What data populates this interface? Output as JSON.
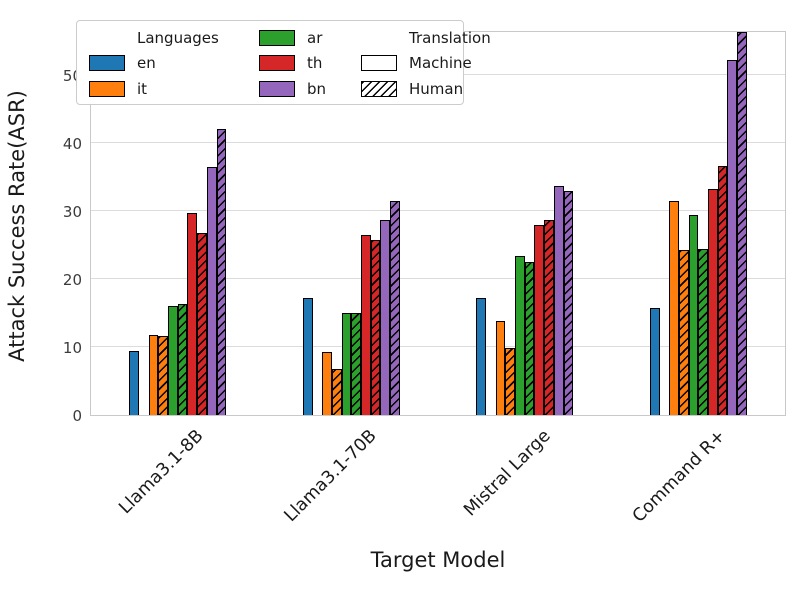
{
  "figure": {
    "background": "#ffffff",
    "text_color": "#1a1a1a",
    "grid_color": "#dcdcdc",
    "spine_color": "#c9c9c9",
    "bar_edge_color": "#000000"
  },
  "legend": {
    "columns": [
      {
        "items": [
          {
            "type": "header",
            "label": "Languages"
          },
          {
            "type": "patch",
            "color": "#1f77b4",
            "hatch": false,
            "label": "en"
          },
          {
            "type": "patch",
            "color": "#ff7f0e",
            "hatch": false,
            "label": "it"
          }
        ]
      },
      {
        "items": [
          {
            "type": "patch",
            "color": "#2ca02c",
            "hatch": false,
            "label": "ar"
          },
          {
            "type": "patch",
            "color": "#d62728",
            "hatch": false,
            "label": "th"
          },
          {
            "type": "patch",
            "color": "#9467bd",
            "hatch": false,
            "label": "bn"
          }
        ]
      },
      {
        "items": [
          {
            "type": "header",
            "label": "Translation"
          },
          {
            "type": "patch",
            "color": "#ffffff",
            "hatch": false,
            "label": "Machine"
          },
          {
            "type": "patch",
            "color": "#ffffff",
            "hatch": true,
            "label": "Human"
          }
        ]
      }
    ]
  },
  "chart_data": {
    "type": "bar",
    "title": "",
    "xlabel": "Target Model",
    "ylabel": "Attack Success Rate(ASR)",
    "categories": [
      "Llama3.1-8B",
      "Llama3.1-70B",
      "Mistral Large",
      "Command R+"
    ],
    "yticks": [
      0,
      10,
      20,
      30,
      40,
      50
    ],
    "ylim": [
      0,
      56.6
    ],
    "grid": true,
    "legend_position": "upper left",
    "languages": [
      "en",
      "it",
      "ar",
      "th",
      "bn"
    ],
    "language_colors": {
      "en": "#1f77b4",
      "it": "#ff7f0e",
      "ar": "#2ca02c",
      "th": "#d62728",
      "bn": "#9467bd"
    },
    "translation_styles": {
      "Machine": "solid",
      "Human": "hatched"
    },
    "series": [
      {
        "name": "en Machine",
        "language": "en",
        "translation": "Machine",
        "hatch": false,
        "values": [
          9.4,
          17.2,
          17.2,
          15.7
        ]
      },
      {
        "name": "it Machine",
        "language": "it",
        "translation": "Machine",
        "hatch": false,
        "values": [
          11.7,
          9.3,
          13.8,
          31.5
        ]
      },
      {
        "name": "it Human",
        "language": "it",
        "translation": "Human",
        "hatch": true,
        "values": [
          11.6,
          6.8,
          9.9,
          24.3
        ]
      },
      {
        "name": "ar Machine",
        "language": "ar",
        "translation": "Machine",
        "hatch": false,
        "values": [
          16.1,
          15.0,
          23.4,
          29.4
        ]
      },
      {
        "name": "ar Human",
        "language": "ar",
        "translation": "Human",
        "hatch": true,
        "values": [
          16.3,
          15.0,
          22.5,
          24.4
        ]
      },
      {
        "name": "th Machine",
        "language": "th",
        "translation": "Machine",
        "hatch": false,
        "values": [
          29.7,
          26.4,
          28.0,
          33.2
        ]
      },
      {
        "name": "th Human",
        "language": "th",
        "translation": "Human",
        "hatch": true,
        "values": [
          26.8,
          25.7,
          28.6,
          36.6
        ]
      },
      {
        "name": "bn Machine",
        "language": "bn",
        "translation": "Machine",
        "hatch": false,
        "values": [
          36.5,
          28.6,
          33.6,
          52.2
        ]
      },
      {
        "name": "bn Human",
        "language": "bn",
        "translation": "Human",
        "hatch": true,
        "values": [
          42.1,
          31.4,
          33.0,
          56.3
        ]
      }
    ],
    "note_missing_bars": "en has no Human bar; one empty slot follows en in each group"
  }
}
